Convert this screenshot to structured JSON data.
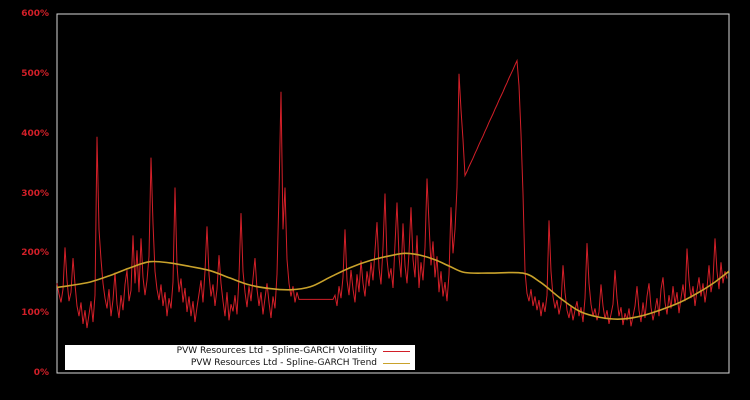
{
  "figure": {
    "background": "#000000",
    "plot_background": "#000000",
    "border_color": "#d9d9d9"
  },
  "legend": {
    "background": "#ffffff",
    "text_color": "#111111",
    "items": [
      {
        "label": "PVW Resources Ltd - Spline-GARCH Volatility",
        "color": "#d21f28"
      },
      {
        "label": "PVW Resources Ltd - Spline-GARCH Trend",
        "color": "#c9a22b"
      }
    ]
  },
  "chart_data": {
    "type": "line",
    "title": "",
    "xlabel": "",
    "ylabel": "",
    "ylim": [
      0,
      600
    ],
    "grid": false,
    "legend_position": "lower-left-inside",
    "axis_label_color": "#d21f28",
    "y_ticks": [
      "0%",
      "100%",
      "200%",
      "300%",
      "400%",
      "500%",
      "600%"
    ],
    "y_tick_values": [
      0,
      100,
      200,
      300,
      400,
      500,
      600
    ],
    "x_axis": {
      "tick_labels": [],
      "note": "no visible x tick labels"
    },
    "series": [
      {
        "name": "PVW Resources Ltd - Spline-GARCH Volatility",
        "color": "#d21f28",
        "unit": "percent",
        "sampling": "uniform across x-range",
        "values": [
          150,
          132,
          118,
          140,
          210,
          155,
          120,
          135,
          192,
          148,
          112,
          95,
          118,
          82,
          105,
          75,
          98,
          120,
          85,
          130,
          395,
          240,
          190,
          150,
          125,
          108,
          140,
          95,
          122,
          168,
          115,
          92,
          130,
          105,
          148,
          172,
          120,
          138,
          230,
          150,
          205,
          135,
          225,
          160,
          130,
          155,
          195,
          360,
          250,
          170,
          140,
          122,
          148,
          112,
          135,
          95,
          125,
          108,
          152,
          310,
          180,
          135,
          158,
          118,
          142,
          102,
          128,
          95,
          120,
          85,
          110,
          132,
          155,
          118,
          170,
          245,
          165,
          128,
          148,
          112,
          140,
          197,
          150,
          120,
          95,
          135,
          88,
          115,
          103,
          130,
          98,
          160,
          267,
          170,
          135,
          110,
          145,
          120,
          158,
          192,
          140,
          112,
          135,
          98,
          125,
          150,
          118,
          92,
          128,
          108,
          165,
          300,
          470,
          240,
          310,
          190,
          150,
          128,
          145,
          118,
          135,
          123,
          123,
          123,
          123,
          123,
          123,
          123,
          123,
          123,
          123,
          123,
          123,
          123,
          123,
          123,
          123,
          123,
          123,
          130,
          112,
          145,
          125,
          160,
          240,
          155,
          130,
          172,
          140,
          118,
          165,
          135,
          188,
          150,
          128,
          170,
          145,
          185,
          155,
          205,
          252,
          175,
          148,
          210,
          300,
          190,
          158,
          175,
          142,
          215,
          285,
          195,
          160,
          250,
          180,
          150,
          200,
          277,
          190,
          160,
          230,
          142,
          185,
          155,
          210,
          325,
          250,
          180,
          220,
          160,
          195,
          135,
          170,
          128,
          152,
          120,
          165,
          277,
          200,
          240,
          310,
          500,
          440,
          390,
          330,
          337,
          345,
          352,
          359,
          367,
          374,
          382,
          389,
          396,
          404,
          411,
          419,
          426,
          433,
          441,
          448,
          456,
          463,
          470,
          478,
          485,
          493,
          500,
          507,
          515,
          522,
          480,
          400,
          300,
          170,
          133,
          120,
          140,
          112,
          128,
          105,
          122,
          95,
          118,
          102,
          130,
          255,
          170,
          128,
          108,
          122,
          98,
          115,
          180,
          135,
          105,
          92,
          112,
          88,
          105,
          120,
          95,
          110,
          85,
          125,
          217,
          150,
          115,
          95,
          108,
          88,
          102,
          148,
          112,
          90,
          105,
          82,
          98,
          115,
          172,
          125,
          95,
          110,
          80,
          100,
          88,
          108,
          78,
          95,
          112,
          145,
          105,
          85,
          118,
          92,
          128,
          150,
          110,
          88,
          105,
          125,
          95,
          140,
          160,
          118,
          98,
          130,
          108,
          145,
          115,
          135,
          100,
          125,
          148,
          120,
          208,
          155,
          125,
          145,
          112,
          138,
          160,
          128,
          150,
          118,
          142,
          180,
          135,
          155,
          225,
          170,
          140,
          185,
          150,
          170,
          158
        ]
      },
      {
        "name": "PVW Resources Ltd - Spline-GARCH Trend",
        "color": "#c9a22b",
        "unit": "percent",
        "sampling": "anchor points [x_fraction, percent]",
        "points": [
          [
            0,
            143
          ],
          [
            0.019,
            146
          ],
          [
            0.049,
            152
          ],
          [
            0.079,
            163
          ],
          [
            0.109,
            176
          ],
          [
            0.138,
            186
          ],
          [
            0.168,
            184
          ],
          [
            0.198,
            178
          ],
          [
            0.228,
            171
          ],
          [
            0.257,
            159
          ],
          [
            0.287,
            147
          ],
          [
            0.317,
            141
          ],
          [
            0.347,
            139
          ],
          [
            0.377,
            144
          ],
          [
            0.406,
            160
          ],
          [
            0.436,
            176
          ],
          [
            0.466,
            188
          ],
          [
            0.496,
            196
          ],
          [
            0.518,
            200
          ],
          [
            0.54,
            197
          ],
          [
            0.563,
            189
          ],
          [
            0.585,
            178
          ],
          [
            0.607,
            168
          ],
          [
            0.644,
            167
          ],
          [
            0.693,
            167
          ],
          [
            0.719,
            152
          ],
          [
            0.749,
            125
          ],
          [
            0.778,
            103
          ],
          [
            0.808,
            93
          ],
          [
            0.838,
            90
          ],
          [
            0.868,
            95
          ],
          [
            0.897,
            105
          ],
          [
            0.927,
            118
          ],
          [
            0.957,
            136
          ],
          [
            0.979,
            152
          ],
          [
            1,
            170
          ]
        ]
      }
    ]
  }
}
